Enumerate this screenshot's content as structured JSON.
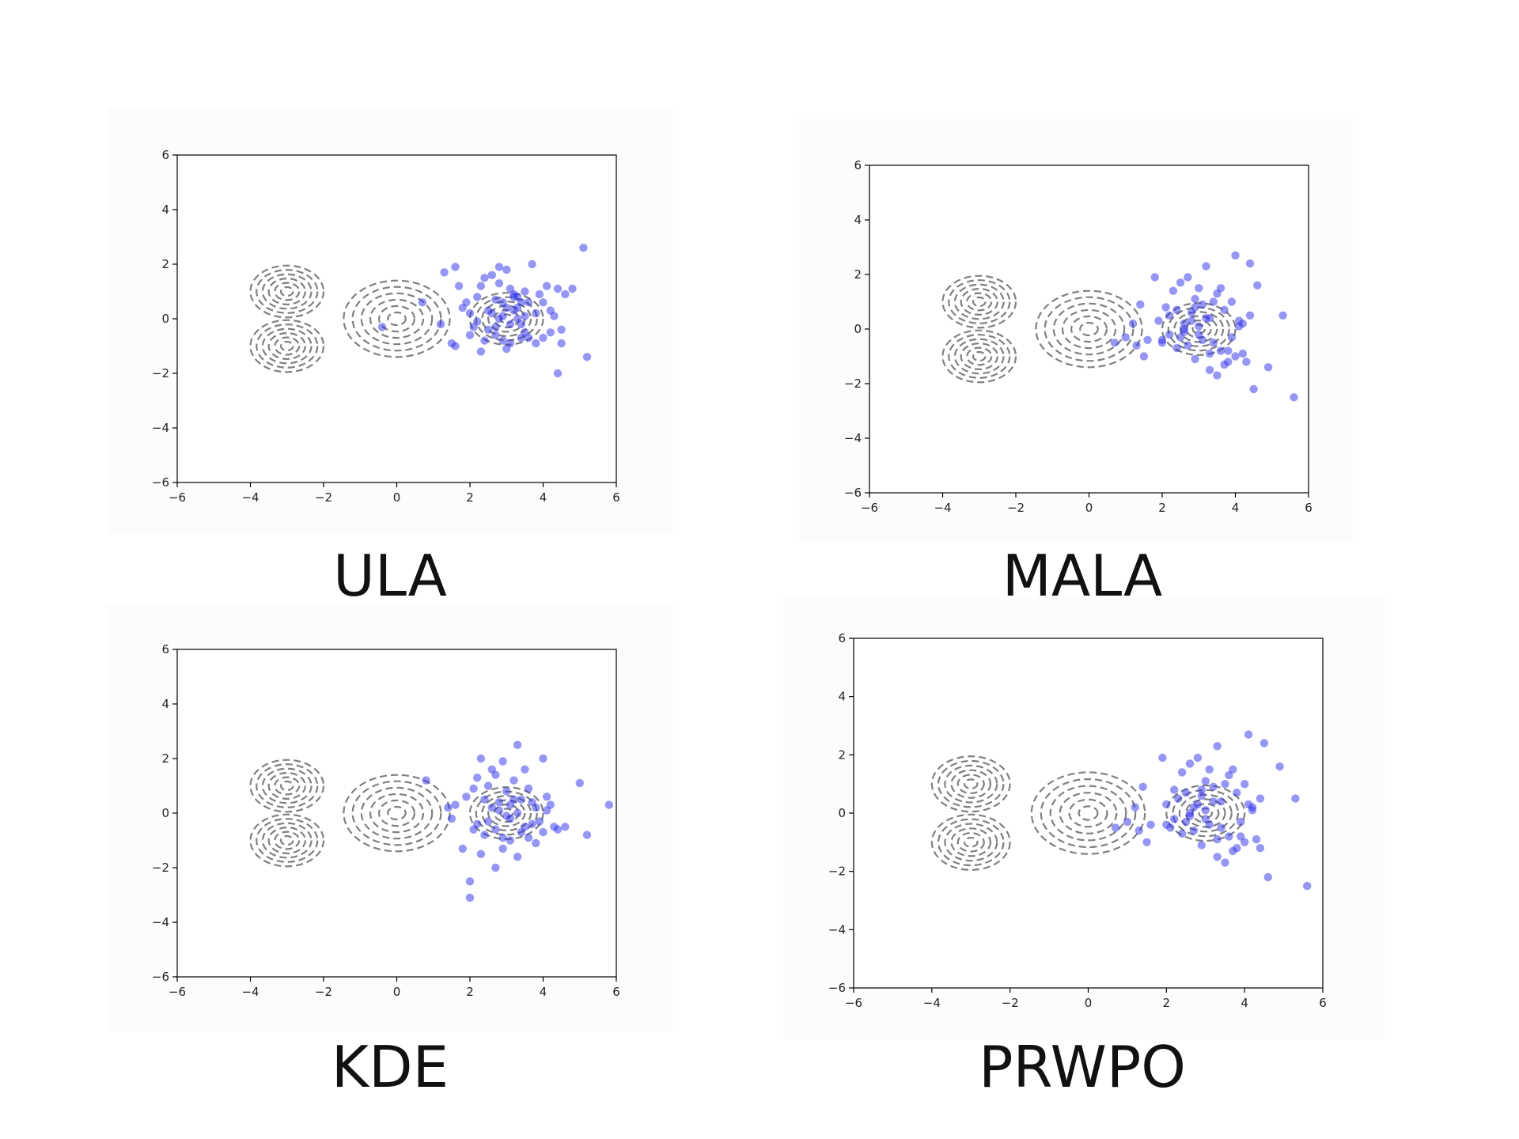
{
  "figure": {
    "labels": [
      "ULA",
      "MALA",
      "KDE",
      "PRWPO"
    ]
  },
  "chart_data": [
    {
      "type": "scatter",
      "title": "ULA",
      "xlim": [
        -6,
        6
      ],
      "ylim": [
        -6,
        6
      ],
      "xticks": [
        "−6",
        "−4",
        "−2",
        "0",
        "2",
        "4",
        "6"
      ],
      "yticks": [
        "−6",
        "−4",
        "−2",
        "0",
        "2",
        "4",
        "6"
      ],
      "contours": "target density: modes at (-3, 1), (-3, -1), (0, 0), (3, 0)",
      "x": [
        1.3,
        1.6,
        1.7,
        1.9,
        2.0,
        2.1,
        2.2,
        2.3,
        2.4,
        2.5,
        2.6,
        2.7,
        2.8,
        2.9,
        3.0,
        3.1,
        3.2,
        3.3,
        3.4,
        3.5,
        3.6,
        3.7,
        3.8,
        3.9,
        4.0,
        4.1,
        4.2,
        4.3,
        4.4,
        4.5,
        4.6,
        4.8,
        5.1,
        5.2,
        2.5,
        2.7,
        2.9,
        3.1,
        3.3,
        3.5,
        2.6,
        2.8,
        3.0,
        3.2,
        3.4,
        2.4,
        2.2,
        2.0,
        1.8,
        1.6,
        3.6,
        3.8,
        4.0,
        4.2,
        4.4,
        2.9,
        3.1,
        3.3,
        2.7,
        3.5,
        0.7,
        -0.4,
        1.2,
        1.5,
        2.3,
        2.8,
        3.0,
        3.2,
        3.4,
        4.5
      ],
      "y": [
        1.7,
        1.9,
        1.2,
        0.6,
        0.2,
        -0.3,
        0.8,
        1.2,
        1.5,
        0.3,
        1.6,
        0.7,
        1.9,
        0.1,
        1.8,
        1.1,
        0.8,
        0.4,
        -0.2,
        1.0,
        0.6,
        2.0,
        0.2,
        0.9,
        0.6,
        1.2,
        -0.5,
        0.1,
        1.1,
        -0.9,
        0.9,
        1.1,
        2.6,
        -1.4,
        -0.4,
        -0.6,
        -0.8,
        -0.2,
        0.0,
        -0.5,
        0.2,
        0.0,
        0.4,
        0.3,
        0.6,
        -0.8,
        -0.1,
        -0.6,
        0.4,
        -1.0,
        -0.7,
        -0.9,
        -0.7,
        0.3,
        -2.0,
        0.6,
        -0.9,
        0.8,
        -0.3,
        0.1,
        0.6,
        -0.3,
        -0.2,
        -0.9,
        -1.2,
        1.3,
        -1.1,
        0.9,
        -0.7,
        -0.4
      ]
    },
    {
      "type": "scatter",
      "title": "MALA",
      "xlim": [
        -6,
        6
      ],
      "ylim": [
        -6,
        6
      ],
      "xticks": [
        "−6",
        "−4",
        "−2",
        "0",
        "2",
        "4",
        "6"
      ],
      "yticks": [
        "−6",
        "−4",
        "−2",
        "0",
        "2",
        "4",
        "6"
      ],
      "contours": "target density: modes at (-3, 1), (-3, -1), (0, 0), (3, 0)",
      "x": [
        0.7,
        1.0,
        1.2,
        1.3,
        1.4,
        1.5,
        1.6,
        1.8,
        1.9,
        2.0,
        2.1,
        2.2,
        2.3,
        2.4,
        2.5,
        2.6,
        2.7,
        2.8,
        2.9,
        3.0,
        3.1,
        3.2,
        3.3,
        3.4,
        3.5,
        3.6,
        3.7,
        3.8,
        3.9,
        4.0,
        4.1,
        4.2,
        4.3,
        4.4,
        4.5,
        4.6,
        4.9,
        5.3,
        5.6,
        2.5,
        2.7,
        2.9,
        3.1,
        3.3,
        3.5,
        2.6,
        2.8,
        3.0,
        3.2,
        3.4,
        3.6,
        3.8,
        4.0,
        4.2,
        2.2,
        2.4,
        2.0,
        3.0,
        3.9,
        4.1,
        4.4,
        3.7,
        3.3,
        2.9,
        2.6
      ],
      "y": [
        -0.5,
        -0.3,
        0.2,
        -0.6,
        0.9,
        -1.0,
        -0.4,
        1.9,
        0.3,
        -0.5,
        0.8,
        0.5,
        1.4,
        0.7,
        1.7,
        0.2,
        1.9,
        0.6,
        1.1,
        1.5,
        0.9,
        2.3,
        0.4,
        1.0,
        1.3,
        1.5,
        0.7,
        -0.8,
        1.0,
        2.7,
        0.1,
        -0.9,
        -1.2,
        2.4,
        -2.2,
        1.6,
        -1.4,
        0.5,
        -2.5,
        -0.3,
        -0.6,
        -1.1,
        -0.4,
        -0.9,
        -1.7,
        0.0,
        0.3,
        -0.2,
        0.4,
        -0.5,
        -0.8,
        -1.2,
        -1.0,
        0.2,
        -0.2,
        -0.7,
        -0.4,
        0.1,
        -0.3,
        0.3,
        0.5,
        -1.3,
        -1.5,
        0.8,
        -0.1
      ]
    },
    {
      "type": "scatter",
      "title": "KDE",
      "xlim": [
        -6,
        6
      ],
      "ylim": [
        -6,
        6
      ],
      "xticks": [
        "−6",
        "−4",
        "−2",
        "0",
        "2",
        "4",
        "6"
      ],
      "yticks": [
        "−6",
        "−4",
        "−2",
        "0",
        "2",
        "4",
        "6"
      ],
      "contours": "target density: modes at (-3, 1), (-3, -1), (0, 0), (3, 0)",
      "x": [
        0.8,
        1.4,
        1.5,
        1.6,
        1.8,
        1.9,
        2.0,
        2.0,
        2.1,
        2.2,
        2.3,
        2.4,
        2.5,
        2.6,
        2.7,
        2.8,
        2.9,
        3.0,
        3.1,
        3.2,
        3.3,
        3.4,
        3.5,
        3.6,
        3.7,
        3.8,
        3.9,
        4.0,
        4.1,
        4.2,
        4.3,
        4.4,
        4.6,
        5.0,
        5.2,
        5.8,
        2.5,
        2.7,
        2.9,
        3.1,
        3.3,
        3.5,
        2.6,
        2.8,
        3.0,
        3.2,
        3.4,
        2.4,
        2.2,
        3.6,
        3.8,
        4.0,
        2.1,
        2.3,
        2.9,
        3.1,
        2.7,
        3.3,
        3.7,
        4.1
      ],
      "y": [
        1.2,
        0.2,
        -0.2,
        0.3,
        -1.3,
        0.6,
        -2.5,
        -3.1,
        0.9,
        1.3,
        2.0,
        0.5,
        1.0,
        1.6,
        1.4,
        0.1,
        1.9,
        0.8,
        0.3,
        1.2,
        2.5,
        0.5,
        1.6,
        0.9,
        0.4,
        0.2,
        -0.3,
        2.0,
        0.6,
        0.3,
        -0.5,
        -0.6,
        -0.5,
        1.1,
        -0.8,
        0.3,
        -0.3,
        -0.6,
        -0.9,
        -0.2,
        0.0,
        -0.5,
        0.2,
        0.4,
        -0.1,
        0.5,
        -0.7,
        -0.8,
        -0.4,
        -0.9,
        -1.1,
        -0.7,
        -0.6,
        -1.5,
        -1.3,
        -1.0,
        -2.0,
        -1.6,
        -0.4,
        0.1
      ]
    },
    {
      "type": "scatter",
      "title": "PRWPO",
      "xlim": [
        -6,
        6
      ],
      "ylim": [
        -6,
        6
      ],
      "xticks": [
        "−6",
        "−4",
        "−2",
        "0",
        "2",
        "4",
        "6"
      ],
      "yticks": [
        "−6",
        "−4",
        "−2",
        "0",
        "2",
        "4",
        "6"
      ],
      "contours": "target density: modes at (-3, 1), (-3, -1), (0, 0), (3, 0)",
      "x": [
        0.7,
        1.0,
        1.2,
        1.3,
        1.4,
        1.5,
        1.6,
        1.9,
        2.0,
        2.1,
        2.2,
        2.3,
        2.4,
        2.5,
        2.6,
        2.7,
        2.8,
        2.9,
        3.0,
        3.1,
        3.2,
        3.3,
        3.4,
        3.5,
        3.6,
        3.7,
        3.8,
        3.9,
        4.0,
        4.1,
        4.2,
        4.3,
        4.4,
        4.5,
        4.6,
        4.9,
        5.3,
        5.6,
        2.5,
        2.7,
        2.9,
        3.1,
        3.3,
        3.5,
        2.6,
        2.8,
        3.0,
        3.2,
        3.4,
        3.6,
        3.8,
        4.0,
        4.2,
        2.2,
        2.4,
        2.0,
        3.0,
        3.9,
        4.1,
        4.4,
        3.7,
        3.3,
        2.9,
        2.6
      ],
      "y": [
        -0.5,
        -0.3,
        0.2,
        -0.6,
        0.9,
        -1.0,
        -0.4,
        1.9,
        0.3,
        -0.5,
        0.8,
        0.5,
        1.4,
        0.7,
        1.7,
        0.2,
        1.9,
        0.6,
        1.1,
        1.5,
        0.9,
        2.3,
        0.4,
        1.0,
        1.3,
        1.5,
        0.7,
        -0.8,
        1.0,
        2.7,
        0.1,
        -0.9,
        -1.2,
        2.4,
        -2.2,
        1.6,
        0.5,
        -2.5,
        -0.3,
        -0.6,
        -1.1,
        -0.4,
        -0.9,
        -1.7,
        0.0,
        0.3,
        -0.2,
        0.4,
        -0.5,
        -0.8,
        -1.2,
        -1.0,
        0.2,
        -0.2,
        -0.7,
        -0.4,
        0.1,
        -0.3,
        0.3,
        0.5,
        -1.3,
        -1.5,
        0.8,
        -0.1
      ]
    }
  ]
}
